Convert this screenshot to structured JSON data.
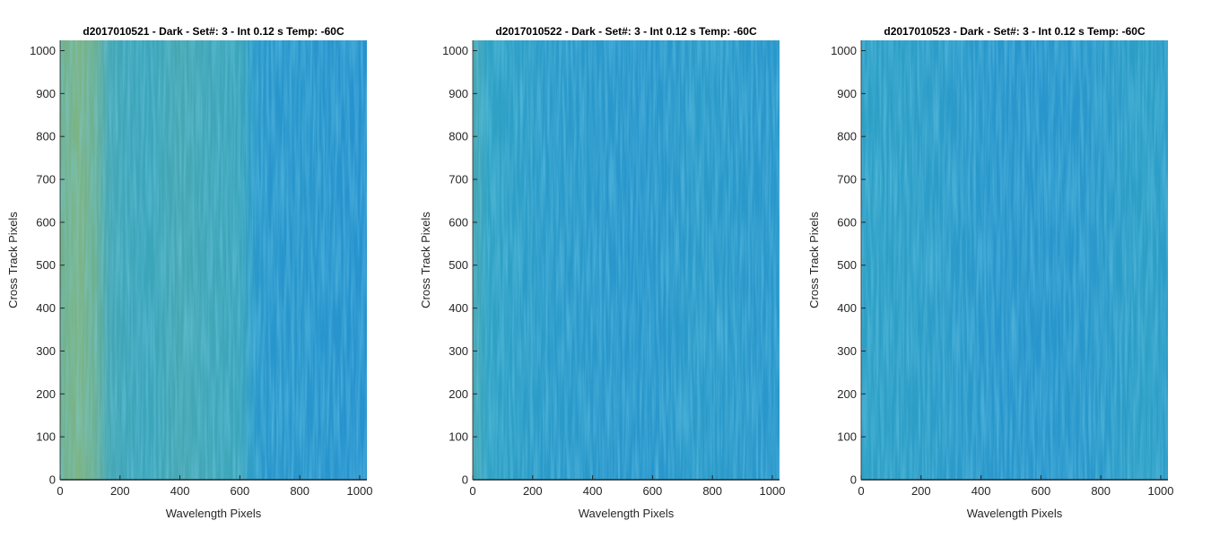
{
  "figure": {
    "colormap": "parula",
    "colors": {
      "axis": "#262626",
      "low": "#1f86d6",
      "mid": "#2fa2c4",
      "high": "#b2c05a"
    }
  },
  "chart_data": [
    {
      "type": "heatmap",
      "title": "d2017010521 - Dark - Set#: 3 - Int 0.12 s Temp: -60C",
      "xlabel": "Wavelength Pixels",
      "ylabel": "Cross Track Pixels",
      "xlim": [
        0,
        1024
      ],
      "ylim": [
        0,
        1024
      ],
      "xticks": [
        0,
        200,
        400,
        600,
        800,
        1000
      ],
      "yticks": [
        0,
        100,
        200,
        300,
        400,
        500,
        600,
        700,
        800,
        900,
        1000
      ],
      "intensity_profile": {
        "x": [
          0,
          60,
          120,
          160,
          200,
          300,
          400,
          500,
          600,
          650,
          700,
          800,
          900,
          1000,
          1024
        ],
        "level": [
          0.72,
          0.78,
          0.7,
          0.55,
          0.52,
          0.5,
          0.55,
          0.52,
          0.5,
          0.3,
          0.26,
          0.25,
          0.22,
          0.2,
          0.2
        ]
      }
    },
    {
      "type": "heatmap",
      "title": "d2017010522 - Dark - Set#: 3 - Int 0.12 s Temp: -60C",
      "xlabel": "Wavelength Pixels",
      "ylabel": "Cross Track Pixels",
      "xlim": [
        0,
        1024
      ],
      "ylim": [
        0,
        1024
      ],
      "xticks": [
        0,
        200,
        400,
        600,
        800,
        1000
      ],
      "yticks": [
        0,
        100,
        200,
        300,
        400,
        500,
        600,
        700,
        800,
        900,
        1000
      ],
      "intensity_profile": {
        "x": [
          0,
          50,
          150,
          250,
          350,
          450,
          550,
          650,
          750,
          850,
          950,
          1024
        ],
        "level": [
          0.55,
          0.45,
          0.38,
          0.32,
          0.3,
          0.27,
          0.25,
          0.28,
          0.33,
          0.3,
          0.28,
          0.27
        ]
      }
    },
    {
      "type": "heatmap",
      "title": "d2017010523 - Dark - Set#: 3 - Int 0.12 s Temp: -60C",
      "xlabel": "Wavelength Pixels",
      "ylabel": "Cross Track Pixels",
      "xlim": [
        0,
        1024
      ],
      "ylim": [
        0,
        1024
      ],
      "xticks": [
        0,
        200,
        400,
        600,
        800,
        1000
      ],
      "yticks": [
        0,
        100,
        200,
        300,
        400,
        500,
        600,
        700,
        800,
        900,
        1000
      ],
      "intensity_profile": {
        "x": [
          0,
          50,
          150,
          250,
          350,
          450,
          550,
          650,
          750,
          850,
          950,
          1024
        ],
        "level": [
          0.42,
          0.4,
          0.38,
          0.36,
          0.3,
          0.25,
          0.24,
          0.26,
          0.28,
          0.34,
          0.4,
          0.36
        ]
      }
    }
  ]
}
